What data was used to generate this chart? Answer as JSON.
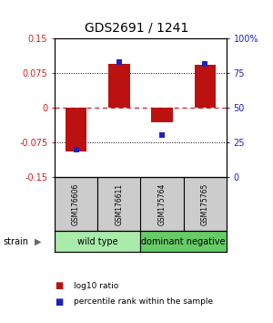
{
  "title": "GDS2691 / 1241",
  "samples": [
    "GSM176606",
    "GSM176611",
    "GSM175764",
    "GSM175765"
  ],
  "log10_ratio": [
    -0.095,
    0.095,
    -0.032,
    0.093
  ],
  "percentile_rank": [
    20,
    83,
    30,
    82
  ],
  "groups": [
    {
      "name": "wild type",
      "samples": [
        0,
        1
      ],
      "color": "#aaeaaa"
    },
    {
      "name": "dominant negative",
      "samples": [
        2,
        3
      ],
      "color": "#66cc66"
    }
  ],
  "group_label": "strain",
  "ylim": [
    -0.15,
    0.15
  ],
  "yticks_left": [
    -0.15,
    -0.075,
    0,
    0.075,
    0.15
  ],
  "yticks_right": [
    0,
    25,
    50,
    75,
    100
  ],
  "bar_color": "#bb1111",
  "dot_color": "#2222bb",
  "background_color": "#ffffff",
  "legend_red_label": "log10 ratio",
  "legend_blue_label": "percentile rank within the sample",
  "sample_box_color": "#cccccc",
  "title_fontsize": 10,
  "tick_fontsize": 7,
  "sample_fontsize": 5.5,
  "group_fontsize": 7,
  "legend_fontsize": 6.5
}
